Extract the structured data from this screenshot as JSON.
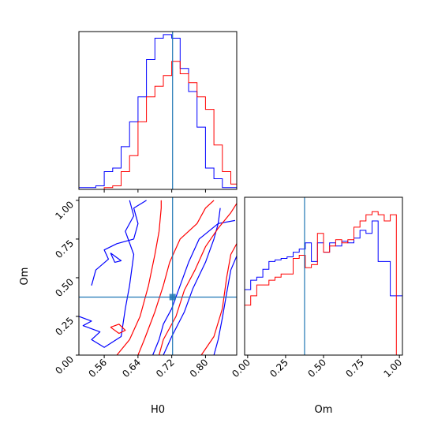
{
  "chart_data": [
    {
      "type": "histogram",
      "panel": "H0 marginal (top-left)",
      "xlim": [
        0.5,
        0.874
      ],
      "truth": 0.722,
      "series": [
        {
          "color": "#0000ff",
          "edges": [
            0.5,
            0.52,
            0.54,
            0.56,
            0.58,
            0.6,
            0.62,
            0.64,
            0.66,
            0.68,
            0.7,
            0.72,
            0.74,
            0.76,
            0.78,
            0.8,
            0.82,
            0.84,
            0.86,
            0.874
          ],
          "counts": [
            1,
            1,
            2,
            10,
            12,
            24,
            38,
            52,
            73,
            85,
            87,
            85,
            68,
            55,
            35,
            12,
            6,
            1,
            1
          ]
        },
        {
          "color": "#ff0000",
          "edges": [
            0.5,
            0.52,
            0.54,
            0.56,
            0.58,
            0.6,
            0.62,
            0.64,
            0.66,
            0.68,
            0.7,
            0.72,
            0.74,
            0.76,
            0.78,
            0.8,
            0.82,
            0.84,
            0.86,
            0.874
          ],
          "counts": [
            0,
            0,
            0,
            1,
            2,
            10,
            19,
            38,
            52,
            58,
            64,
            72,
            65,
            60,
            52,
            45,
            25,
            10,
            3
          ]
        }
      ]
    },
    {
      "type": "contour",
      "panel": "H0 vs Om joint (bottom-left)",
      "xlabel": "H0",
      "ylabel": "Om",
      "xlim": [
        0.5,
        0.874
      ],
      "ylim": [
        0.0,
        1.02
      ],
      "xticks": [
        "0.56",
        "0.64",
        "0.72",
        "0.80"
      ],
      "yticks": [
        "0.00",
        "0.25",
        "0.50",
        "0.75",
        "1.00"
      ],
      "truth": {
        "H0": 0.722,
        "Om": 0.375
      },
      "marker": {
        "H0": 0.722,
        "Om": 0.375
      },
      "contours": [
        {
          "color": "#0000ff",
          "points": [
            [
              0.675,
              0.0
            ],
            [
              0.69,
              0.1
            ],
            [
              0.7,
              0.2
            ],
            [
              0.72,
              0.3
            ],
            [
              0.74,
              0.45
            ],
            [
              0.76,
              0.6
            ],
            [
              0.785,
              0.75
            ],
            [
              0.83,
              0.85
            ],
            [
              0.87,
              0.87
            ]
          ]
        },
        {
          "color": "#0000ff",
          "points": [
            [
              0.7,
              0.0
            ],
            [
              0.72,
              0.12
            ],
            [
              0.75,
              0.28
            ],
            [
              0.77,
              0.43
            ],
            [
              0.8,
              0.6
            ],
            [
              0.82,
              0.75
            ],
            [
              0.83,
              0.85
            ],
            [
              0.835,
              0.95
            ]
          ]
        },
        {
          "color": "#0000ff",
          "points": [
            [
              0.82,
              0.0
            ],
            [
              0.83,
              0.1
            ],
            [
              0.84,
              0.24
            ],
            [
              0.85,
              0.4
            ],
            [
              0.86,
              0.55
            ],
            [
              0.874,
              0.64
            ]
          ]
        },
        {
          "color": "#0000ff",
          "points": [
            [
              0.5,
              0.25
            ],
            [
              0.53,
              0.22
            ],
            [
              0.51,
              0.19
            ],
            [
              0.55,
              0.15
            ],
            [
              0.53,
              0.1
            ],
            [
              0.56,
              0.05
            ],
            [
              0.6,
              0.12
            ],
            [
              0.61,
              0.3
            ],
            [
              0.62,
              0.45
            ],
            [
              0.63,
              0.65
            ],
            [
              0.61,
              0.8
            ],
            [
              0.63,
              0.9
            ],
            [
              0.62,
              1.0
            ]
          ]
        },
        {
          "color": "#0000ff",
          "points": [
            [
              0.53,
              0.45
            ],
            [
              0.54,
              0.55
            ],
            [
              0.57,
              0.62
            ],
            [
              0.56,
              0.68
            ],
            [
              0.59,
              0.72
            ],
            [
              0.63,
              0.75
            ],
            [
              0.64,
              0.85
            ],
            [
              0.63,
              0.95
            ],
            [
              0.66,
              1.0
            ]
          ]
        },
        {
          "color": "#0000ff",
          "points": [
            [
              0.575,
              0.66
            ],
            [
              0.59,
              0.63
            ],
            [
              0.6,
              0.61
            ],
            [
              0.585,
              0.6
            ],
            [
              0.575,
              0.66
            ]
          ]
        },
        {
          "color": "#ff0000",
          "points": [
            [
              0.59,
              0.0
            ],
            [
              0.62,
              0.1
            ],
            [
              0.645,
              0.25
            ],
            [
              0.665,
              0.45
            ],
            [
              0.68,
              0.65
            ],
            [
              0.69,
              0.8
            ],
            [
              0.695,
              0.95
            ],
            [
              0.695,
              1.0
            ]
          ]
        },
        {
          "color": "#ff0000",
          "points": [
            [
              0.64,
              0.0
            ],
            [
              0.655,
              0.1
            ],
            [
              0.68,
              0.28
            ],
            [
              0.7,
              0.45
            ],
            [
              0.715,
              0.6
            ],
            [
              0.74,
              0.75
            ],
            [
              0.78,
              0.85
            ],
            [
              0.8,
              0.95
            ],
            [
              0.82,
              1.0
            ]
          ]
        },
        {
          "color": "#ff0000",
          "points": [
            [
              0.69,
              0.0
            ],
            [
              0.7,
              0.1
            ],
            [
              0.73,
              0.25
            ],
            [
              0.75,
              0.42
            ],
            [
              0.775,
              0.55
            ],
            [
              0.8,
              0.7
            ],
            [
              0.83,
              0.82
            ],
            [
              0.86,
              0.92
            ],
            [
              0.874,
              0.98
            ]
          ]
        },
        {
          "color": "#ff0000",
          "points": [
            [
              0.79,
              0.0
            ],
            [
              0.82,
              0.12
            ],
            [
              0.84,
              0.3
            ],
            [
              0.85,
              0.5
            ],
            [
              0.86,
              0.65
            ],
            [
              0.874,
              0.72
            ]
          ]
        },
        {
          "color": "#ff0000",
          "points": [
            [
              0.575,
              0.18
            ],
            [
              0.595,
              0.2
            ],
            [
              0.61,
              0.16
            ],
            [
              0.595,
              0.14
            ],
            [
              0.575,
              0.18
            ]
          ]
        }
      ]
    },
    {
      "type": "histogram",
      "panel": "Om marginal (bottom-right)",
      "xlabel": "Om",
      "xlim": [
        -0.02,
        1.02
      ],
      "xticks": [
        "0.00",
        "0.25",
        "0.50",
        "0.75",
        "1.00"
      ],
      "truth": 0.375,
      "series": [
        {
          "color": "#0000ff",
          "edges": [
            -0.02,
            0.02,
            0.06,
            0.1,
            0.14,
            0.18,
            0.22,
            0.26,
            0.3,
            0.34,
            0.38,
            0.42,
            0.46,
            0.5,
            0.54,
            0.58,
            0.62,
            0.66,
            0.7,
            0.74,
            0.78,
            0.82,
            0.86,
            0.9,
            0.94,
            0.98,
            1.02
          ],
          "counts": [
            42,
            48,
            50,
            55,
            60,
            61,
            62,
            63,
            66,
            68,
            72,
            60,
            72,
            66,
            72,
            70,
            73,
            72,
            75,
            80,
            78,
            86,
            60,
            60,
            38,
            38
          ]
        },
        {
          "color": "#ff0000",
          "edges": [
            -0.02,
            0.02,
            0.06,
            0.1,
            0.14,
            0.18,
            0.22,
            0.26,
            0.3,
            0.34,
            0.38,
            0.42,
            0.46,
            0.5,
            0.54,
            0.58,
            0.62,
            0.66,
            0.7,
            0.74,
            0.78,
            0.82,
            0.86,
            0.9,
            0.94,
            0.98,
            1.02
          ],
          "counts": [
            32,
            38,
            45,
            45,
            48,
            50,
            52,
            52,
            62,
            64,
            56,
            58,
            78,
            66,
            70,
            74,
            72,
            74,
            82,
            86,
            90,
            92,
            90,
            86,
            90,
            0
          ]
        }
      ]
    }
  ]
}
